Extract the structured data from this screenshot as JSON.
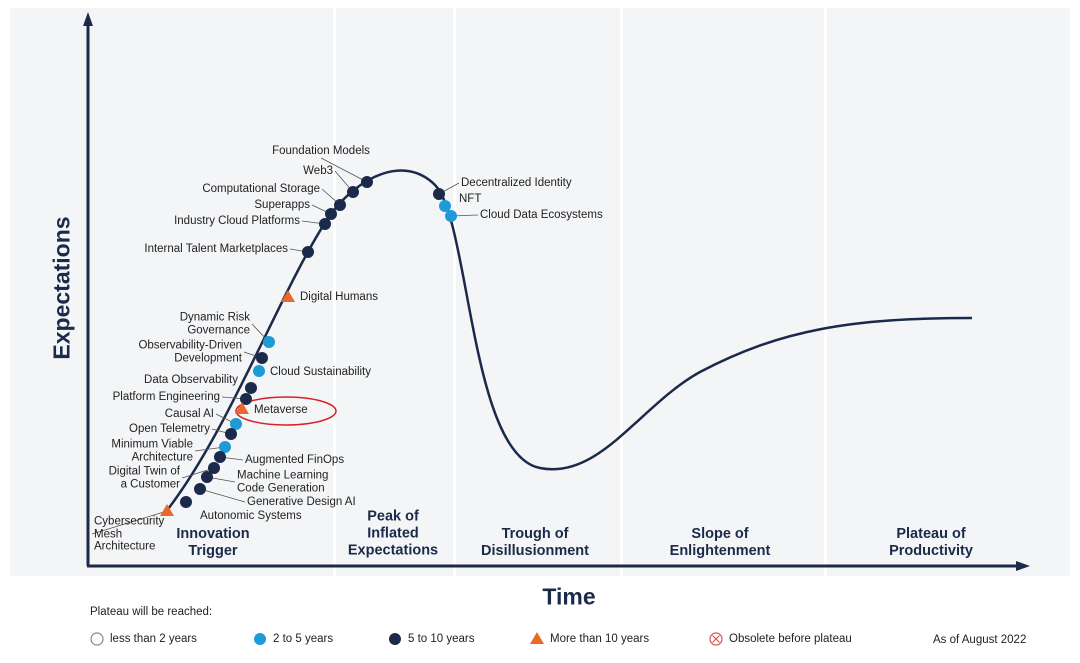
{
  "axes": {
    "y_label": "Expectations",
    "x_label": "Time"
  },
  "phases": [
    "Innovation\nTrigger",
    "Peak of\nInflated\nExpectations",
    "Trough of\nDisillusionment",
    "Slope of\nEnlightenment",
    "Plateau of\nProductivity"
  ],
  "technologies": [
    {
      "label": "Foundation Models",
      "color": "#1b2a4a",
      "shape": "circle"
    },
    {
      "label": "Web3",
      "color": "#1b2a4a",
      "shape": "circle"
    },
    {
      "label": "Computational Storage",
      "color": "#1b2a4a",
      "shape": "circle"
    },
    {
      "label": "Superapps",
      "color": "#1b2a4a",
      "shape": "circle"
    },
    {
      "label": "Industry Cloud Platforms",
      "color": "#1b2a4a",
      "shape": "circle"
    },
    {
      "label": "Internal Talent Marketplaces",
      "color": "#1b2a4a",
      "shape": "circle"
    },
    {
      "label": "Digital Humans",
      "color": "#e8692a",
      "shape": "triangle"
    },
    {
      "label": "Dynamic Risk\nGovernance",
      "color": "#1e9bd7",
      "shape": "circle"
    },
    {
      "label": "Observability-Driven\nDevelopment",
      "color": "#1b2a4a",
      "shape": "circle"
    },
    {
      "label": "Cloud Sustainability",
      "color": "#1e9bd7",
      "shape": "circle"
    },
    {
      "label": "Data Observability",
      "color": "#1b2a4a",
      "shape": "circle"
    },
    {
      "label": "Platform Engineering",
      "color": "#1b2a4a",
      "shape": "circle"
    },
    {
      "label": "Metaverse",
      "color": "#e8692a",
      "shape": "triangle"
    },
    {
      "label": "Causal AI",
      "color": "#1e9bd7",
      "shape": "circle"
    },
    {
      "label": "Open Telemetry",
      "color": "#1b2a4a",
      "shape": "circle"
    },
    {
      "label": "Minimum Viable\nArchitecture",
      "color": "#1e9bd7",
      "shape": "circle"
    },
    {
      "label": "Augmented FinOps",
      "color": "#1b2a4a",
      "shape": "circle"
    },
    {
      "label": "Digital Twin of\na Customer",
      "color": "#1b2a4a",
      "shape": "circle"
    },
    {
      "label": "Machine Learning\nCode Generation",
      "color": "#1b2a4a",
      "shape": "circle"
    },
    {
      "label": "Generative Design AI",
      "color": "#1b2a4a",
      "shape": "circle"
    },
    {
      "label": "Autonomic Systems",
      "color": "#1b2a4a",
      "shape": "circle"
    },
    {
      "label": "Cybersecurity\nMesh\nArchitecture",
      "color": "#e8692a",
      "shape": "triangle"
    },
    {
      "label": "Decentralized Identity",
      "color": "#1b2a4a",
      "shape": "circle"
    },
    {
      "label": "NFT",
      "color": "#1e9bd7",
      "shape": "circle"
    },
    {
      "label": "Cloud Data Ecosystems",
      "color": "#1e9bd7",
      "shape": "circle"
    }
  ],
  "legend": {
    "title": "Plateau will be reached:",
    "items": [
      {
        "label": "less than 2 years",
        "color": "#888888",
        "shape": "circle-open"
      },
      {
        "label": "2 to 5 years",
        "color": "#1e9bd7",
        "shape": "circle"
      },
      {
        "label": "5 to 10 years",
        "color": "#1b2a4a",
        "shape": "circle"
      },
      {
        "label": "More than 10 years",
        "color": "#e8692a",
        "shape": "triangle"
      },
      {
        "label": "Obsolete before plateau",
        "color": "#d9534f",
        "shape": "circle-x"
      }
    ]
  },
  "note": "As of August 2022"
}
